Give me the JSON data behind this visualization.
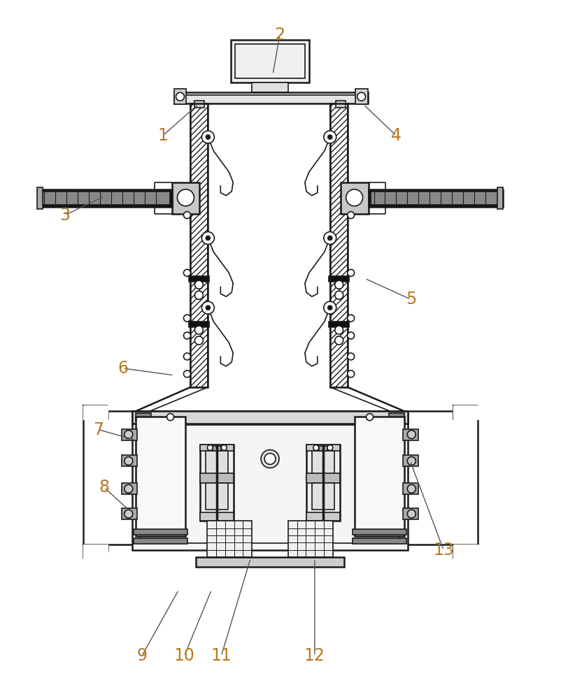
{
  "bg_color": "#ffffff",
  "line_color": "#1a1a1a",
  "label_color": "#b87820",
  "fig_width": 8.02,
  "fig_height": 10.0,
  "label_fontsize": 17,
  "label_data": [
    [
      "1",
      232,
      193,
      283,
      148
    ],
    [
      "2",
      400,
      48,
      390,
      105
    ],
    [
      "3",
      92,
      307,
      148,
      280
    ],
    [
      "4",
      567,
      193,
      520,
      148
    ],
    [
      "5",
      588,
      428,
      522,
      398
    ],
    [
      "6",
      175,
      527,
      248,
      537
    ],
    [
      "7",
      140,
      615,
      193,
      630
    ],
    [
      "8",
      148,
      698,
      183,
      730
    ],
    [
      "9",
      202,
      940,
      255,
      845
    ],
    [
      "10",
      263,
      940,
      302,
      845
    ],
    [
      "11",
      316,
      940,
      358,
      800
    ],
    [
      "12",
      450,
      940,
      450,
      800
    ],
    [
      "13",
      635,
      788,
      587,
      660
    ]
  ]
}
